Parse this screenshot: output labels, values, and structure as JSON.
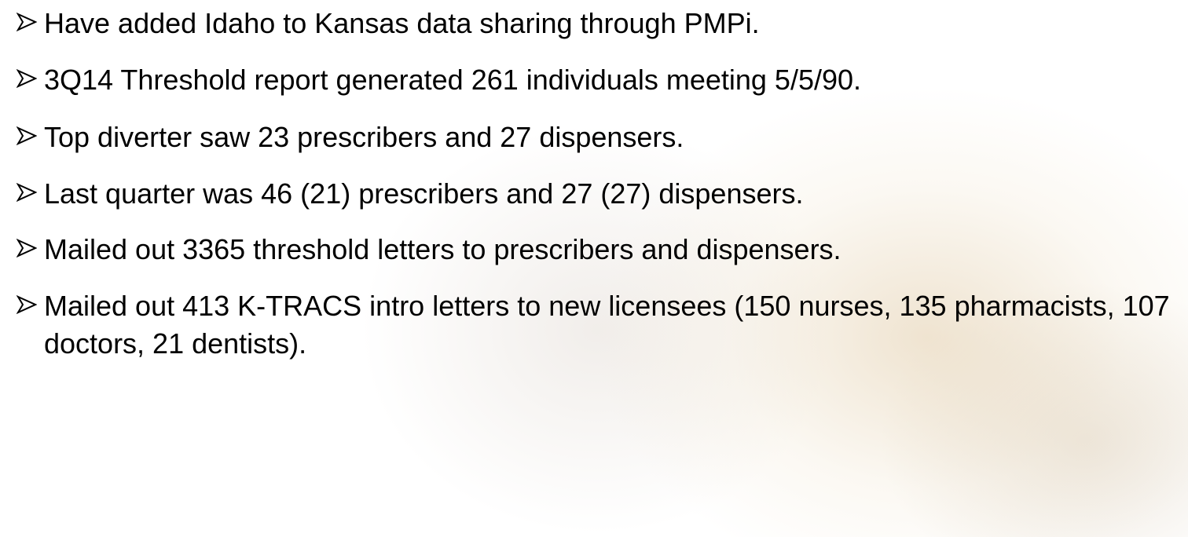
{
  "bullets": [
    "Have added Idaho to Kansas data sharing through PMPi.",
    "3Q14 Threshold report generated 261 individuals meeting 5/5/90.",
    "Top diverter saw 23 prescribers and 27 dispensers.",
    "Last quarter was 46 (21) prescribers and 27 (27) dispensers.",
    "Mailed out 3365 threshold letters to prescribers and dispensers.",
    "Mailed out 413 K-TRACS intro letters to new licensees (150 nurses, 135 pharmacists, 107 doctors, 21 dentists)."
  ]
}
